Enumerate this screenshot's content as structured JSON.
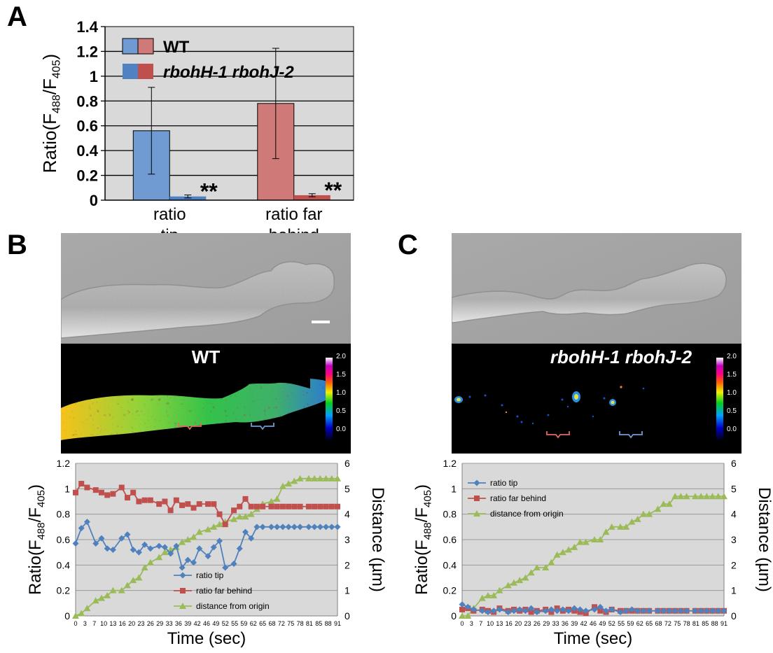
{
  "panels": {
    "a": "A",
    "b": "B",
    "c": "C"
  },
  "colors": {
    "wt_blue": "#6f9bd2",
    "wt_red": "#cf7a78",
    "mut_blue": "#4f81c3",
    "mut_red": "#c0504d",
    "plot_bg": "#d9d9d9",
    "line_blue": "#4f81bd",
    "line_red": "#c0504d",
    "line_green": "#9bbb59"
  },
  "image_b": {
    "label": "WT",
    "scale_max": "2.0",
    "scale_ticks": [
      "2.0",
      "1.5",
      "1.0",
      "0.5",
      "0.0"
    ]
  },
  "image_c": {
    "label": "rbohH-1 rbohJ-2",
    "scale_max": "2.0",
    "scale_ticks": [
      "2.0",
      "1.5",
      "1.0",
      "0.5",
      "0.0"
    ]
  },
  "chart_data": [
    {
      "type": "bar",
      "panel": "A",
      "categories": [
        "ratio tip",
        "ratio far behind"
      ],
      "category_lines": [
        [
          "ratio",
          "tip"
        ],
        [
          "ratio far",
          "behind"
        ]
      ],
      "series": [
        {
          "name": "WT",
          "values": [
            0.56,
            0.78
          ],
          "errors": [
            0.35,
            0.445
          ]
        },
        {
          "name": "rbohH-1 rbohJ-2",
          "values": [
            0.03,
            0.04
          ],
          "errors": [
            0.012,
            0.012
          ],
          "annotation": "**"
        }
      ],
      "ylabel": "Ratio(F488/F405)",
      "ylabel_parts": [
        "Ratio(F",
        "488",
        "/F",
        "405",
        ")"
      ],
      "ylim": [
        0,
        1.4
      ],
      "yticks": [
        "0",
        "0.2",
        "0.4",
        "0.6",
        "0.8",
        "1",
        "1.2",
        "1.4"
      ],
      "legend": "top-left",
      "grid": true
    },
    {
      "type": "line",
      "panel": "B",
      "x": [
        0,
        2,
        4,
        7,
        9,
        11,
        13,
        16,
        18,
        20,
        22,
        24,
        26,
        29,
        31,
        33,
        35,
        37,
        39,
        41,
        43,
        46,
        48,
        50,
        52,
        55,
        57,
        59,
        61,
        63,
        65,
        68,
        70,
        72,
        74,
        76,
        78,
        81,
        83,
        85,
        87,
        89,
        91
      ],
      "xticks": [
        "0",
        "3",
        "7",
        "10",
        "13",
        "16",
        "20",
        "23",
        "26",
        "29",
        "33",
        "36",
        "39",
        "42",
        "46",
        "49",
        "52",
        "55",
        "59",
        "62",
        "65",
        "68",
        "72",
        "75",
        "78",
        "81",
        "85",
        "88",
        "91"
      ],
      "xlabel": "Time (sec)",
      "ylabel": "Ratio(F488/F405)",
      "ylabel_parts": [
        "Ratio(F",
        "488",
        "/F",
        "405",
        ")"
      ],
      "y2label": "Distance (µm)",
      "ylim": [
        0,
        1.2
      ],
      "y2lim": [
        0,
        6
      ],
      "yticks": [
        "0",
        "0.2",
        "0.4",
        "0.6",
        "0.8",
        "1",
        "1.2"
      ],
      "y2ticks": [
        "0",
        "1",
        "2",
        "3",
        "4",
        "5",
        "6"
      ],
      "series": [
        {
          "name": "ratio tip",
          "axis": "left",
          "values": [
            0.57,
            0.69,
            0.74,
            0.57,
            0.61,
            0.53,
            0.52,
            0.61,
            0.64,
            0.52,
            0.5,
            0.56,
            0.53,
            0.55,
            0.54,
            0.49,
            0.55,
            0.38,
            0.44,
            0.42,
            0.53,
            0.47,
            0.54,
            0.59,
            0.38,
            0.41,
            0.53,
            0.66,
            0.61,
            0.7,
            0.7,
            0.7,
            0.7,
            0.7,
            0.7,
            0.7,
            0.7,
            0.7,
            0.7,
            0.7,
            0.7,
            0.7,
            0.7
          ]
        },
        {
          "name": "ratio far behind",
          "axis": "left",
          "values": [
            0.97,
            1.04,
            1.01,
            0.99,
            0.97,
            0.95,
            0.96,
            1.01,
            0.93,
            0.97,
            0.9,
            0.91,
            0.91,
            0.88,
            0.9,
            0.83,
            0.91,
            0.87,
            0.88,
            0.85,
            0.88,
            0.88,
            0.88,
            0.8,
            0.72,
            0.83,
            0.86,
            0.92,
            0.86,
            0.86,
            0.86,
            0.86,
            0.86,
            0.86,
            0.86,
            0.86,
            0.86,
            0.86,
            0.86,
            0.86,
            0.86,
            0.86,
            0.86
          ]
        },
        {
          "name": "distance from origin",
          "axis": "right",
          "values": [
            0,
            0.1,
            0.3,
            0.6,
            0.7,
            0.8,
            1.0,
            1.0,
            1.2,
            1.4,
            1.5,
            1.9,
            2.1,
            2.3,
            2.5,
            2.6,
            2.7,
            2.9,
            3.0,
            3.1,
            3.3,
            3.4,
            3.5,
            3.6,
            3.7,
            3.8,
            3.9,
            3.9,
            4.0,
            4.2,
            4.4,
            4.5,
            4.6,
            5.1,
            5.2,
            5.3,
            5.4,
            5.4,
            5.4,
            5.4,
            5.4,
            5.4,
            5.4
          ]
        }
      ],
      "legend": "bottom-center",
      "grid": true
    },
    {
      "type": "line",
      "panel": "C",
      "x": [
        0,
        2,
        4,
        7,
        9,
        11,
        13,
        16,
        18,
        20,
        22,
        24,
        26,
        29,
        31,
        33,
        35,
        37,
        39,
        41,
        43,
        46,
        48,
        50,
        52,
        55,
        57,
        59,
        61,
        63,
        65,
        68,
        70,
        72,
        74,
        76,
        78,
        81,
        83,
        85,
        87,
        89,
        91
      ],
      "xticks": [
        "0",
        "3",
        "7",
        "10",
        "13",
        "16",
        "20",
        "23",
        "26",
        "29",
        "33",
        "36",
        "39",
        "42",
        "46",
        "49",
        "52",
        "55",
        "59",
        "62",
        "65",
        "68",
        "72",
        "75",
        "78",
        "81",
        "85",
        "88",
        "91"
      ],
      "xlabel": "Time (sec)",
      "ylabel": "Ratio(F488/F405)",
      "ylabel_parts": [
        "Ratio(F",
        "488",
        "/F",
        "405",
        ")"
      ],
      "y2label": "Distance (µm)",
      "ylim": [
        0,
        1.2
      ],
      "y2lim": [
        0,
        6
      ],
      "yticks": [
        "0",
        "0.2",
        "0.4",
        "0.6",
        "0.8",
        "1",
        "1.2"
      ],
      "y2ticks": [
        "0",
        "1",
        "2",
        "3",
        "4",
        "5",
        "6"
      ],
      "series": [
        {
          "name": "ratio tip",
          "axis": "left",
          "values": [
            0.09,
            0.07,
            0.05,
            0.04,
            0.03,
            0.04,
            0.05,
            0.03,
            0.04,
            0.05,
            0.04,
            0.06,
            0.03,
            0.04,
            0.05,
            0.04,
            0.05,
            0.04,
            0.06,
            0.05,
            0.04,
            0.05,
            0.07,
            0.04,
            0.05,
            0.03,
            0.04,
            0.05,
            0.04,
            0.04,
            0.04,
            0.04,
            0.04,
            0.04,
            0.04,
            0.04,
            0.04,
            0.04,
            0.04,
            0.04,
            0.04,
            0.04,
            0.04
          ]
        },
        {
          "name": "ratio far behind",
          "axis": "left",
          "values": [
            0.05,
            0.06,
            0.04,
            0.05,
            0.04,
            0.03,
            0.06,
            0.04,
            0.05,
            0.04,
            0.05,
            0.03,
            0.04,
            0.05,
            0.03,
            0.06,
            0.04,
            0.05,
            0.04,
            0.03,
            0.02,
            0.07,
            0.04,
            0.03,
            0.05,
            0.04,
            0.04,
            0.04,
            0.04,
            0.04,
            0.04,
            0.04,
            0.04,
            0.04,
            0.04,
            0.04,
            0.04,
            0.04,
            0.04,
            0.04,
            0.04,
            0.04,
            0.04
          ]
        },
        {
          "name": "distance from origin",
          "axis": "right",
          "values": [
            0,
            0,
            0.3,
            0.7,
            0.8,
            0.8,
            1.0,
            1.2,
            1.3,
            1.4,
            1.5,
            1.7,
            1.9,
            1.9,
            2.1,
            2.4,
            2.5,
            2.6,
            2.7,
            2.9,
            2.9,
            3.0,
            3.0,
            3.3,
            3.5,
            3.5,
            3.5,
            3.7,
            3.8,
            4.0,
            4.0,
            4.2,
            4.4,
            4.4,
            4.7,
            4.7,
            4.7,
            4.7,
            4.7,
            4.7,
            4.7,
            4.7,
            4.7
          ]
        }
      ],
      "legend": "top-left",
      "grid": true
    }
  ]
}
